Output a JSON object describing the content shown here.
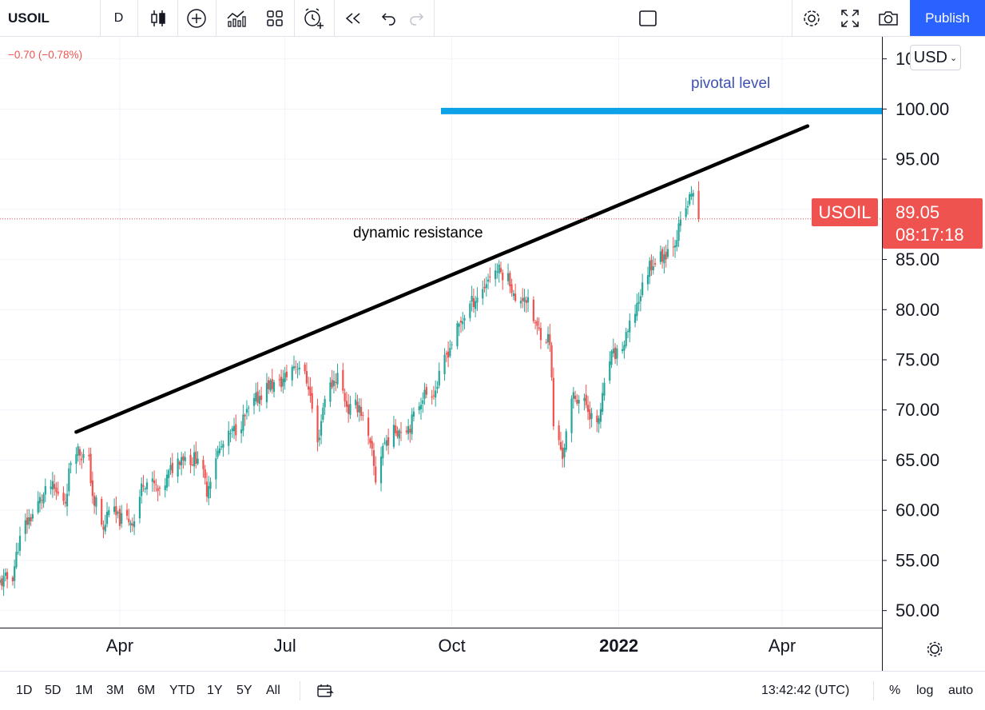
{
  "toolbar": {
    "symbol": "USOIL",
    "interval": "D",
    "publish_label": "Publish",
    "icons": [
      "candles-icon",
      "add-indicator-icon",
      "indicators-icon",
      "layout-icon",
      "alert-icon",
      "replay-icon",
      "undo-icon",
      "redo-icon",
      "rectangle-icon",
      "settings-icon",
      "fullscreen-icon",
      "camera-icon"
    ]
  },
  "legend": {
    "change": "−0.70 (−0.78%)"
  },
  "currency": "USD",
  "price_label": {
    "symbol": "USOIL",
    "price": "89.05",
    "countdown": "08:17:18"
  },
  "annotations": {
    "pivotal": "pivotal level",
    "dynamic": "dynamic resistance"
  },
  "bottom": {
    "ranges": [
      "1D",
      "5D",
      "1M",
      "3M",
      "6M",
      "YTD",
      "1Y",
      "5Y",
      "All"
    ],
    "clock": "13:42:42 (UTC)",
    "pct": "%",
    "log": "log",
    "auto": "auto"
  },
  "chart_data": {
    "type": "candlestick",
    "symbol": "USOIL",
    "y_ticks": [
      "50.00",
      "55.00",
      "60.00",
      "65.00",
      "70.00",
      "75.00",
      "80.00",
      "85.00",
      "90.00",
      "95.00",
      "100.00",
      "105.00"
    ],
    "ylim": [
      48.3,
      107.2
    ],
    "x_ticks": [
      {
        "label": "Apr",
        "date": "2021-04-01"
      },
      {
        "label": "Jul",
        "date": "2021-07-01"
      },
      {
        "label": "Oct",
        "date": "2021-10-01"
      },
      {
        "label": "2022",
        "date": "2022-01-01",
        "bold": true
      },
      {
        "label": "Apr",
        "date": "2022-04-01"
      }
    ],
    "xlim": [
      "2021-01-25",
      "2022-05-26"
    ],
    "last_price": 89.05,
    "colors": {
      "up": "#26a69a",
      "down": "#ef5350",
      "pivot": "#0da2e8",
      "trend": "#000000",
      "grid": "#f0f3fa"
    },
    "close_series": [
      [
        "2021-01-25",
        52.8
      ],
      [
        "2021-02-01",
        53.5
      ],
      [
        "2021-02-04",
        56.5
      ],
      [
        "2021-02-08",
        58.6
      ],
      [
        "2021-02-12",
        59.6
      ],
      [
        "2021-02-16",
        61.0
      ],
      [
        "2021-02-22",
        62.4
      ],
      [
        "2021-02-26",
        61.5
      ],
      [
        "2021-03-02",
        61.0
      ],
      [
        "2021-03-05",
        65.0
      ],
      [
        "2021-03-08",
        66.3
      ],
      [
        "2021-03-11",
        65.5
      ],
      [
        "2021-03-15",
        64.8
      ],
      [
        "2021-03-18",
        60.0
      ],
      [
        "2021-03-19",
        61.0
      ],
      [
        "2021-03-23",
        57.8
      ],
      [
        "2021-03-26",
        60.5
      ],
      [
        "2021-03-31",
        59.1
      ],
      [
        "2021-04-05",
        59.1
      ],
      [
        "2021-04-09",
        59.0
      ],
      [
        "2021-04-14",
        63.0
      ],
      [
        "2021-04-20",
        62.5
      ],
      [
        "2021-04-23",
        61.5
      ],
      [
        "2021-04-29",
        64.0
      ],
      [
        "2021-05-05",
        65.5
      ],
      [
        "2021-05-11",
        65.0
      ],
      [
        "2021-05-14",
        65.5
      ],
      [
        "2021-05-19",
        62.0
      ],
      [
        "2021-05-24",
        65.5
      ],
      [
        "2021-06-01",
        67.5
      ],
      [
        "2021-06-08",
        69.0
      ],
      [
        "2021-06-15",
        71.0
      ],
      [
        "2021-06-22",
        72.5
      ],
      [
        "2021-06-28",
        72.5
      ],
      [
        "2021-07-06",
        74.5
      ],
      [
        "2021-07-09",
        74.5
      ],
      [
        "2021-07-14",
        72.5
      ],
      [
        "2021-07-19",
        66.5
      ],
      [
        "2021-07-23",
        71.5
      ],
      [
        "2021-07-30",
        73.5
      ],
      [
        "2021-08-05",
        70.0
      ],
      [
        "2021-08-11",
        70.5
      ],
      [
        "2021-08-18",
        65.5
      ],
      [
        "2021-08-20",
        63.0
      ],
      [
        "2021-08-24",
        66.5
      ],
      [
        "2021-08-31",
        68.0
      ],
      [
        "2021-09-08",
        68.5
      ],
      [
        "2021-09-15",
        71.5
      ],
      [
        "2021-09-22",
        72.0
      ],
      [
        "2021-09-28",
        75.5
      ],
      [
        "2021-10-04",
        78.0
      ],
      [
        "2021-10-11",
        80.5
      ],
      [
        "2021-10-18",
        82.0
      ],
      [
        "2021-10-22",
        83.5
      ],
      [
        "2021-10-26",
        84.0
      ],
      [
        "2021-11-02",
        83.0
      ],
      [
        "2021-11-05",
        80.5
      ],
      [
        "2021-11-10",
        81.5
      ],
      [
        "2021-11-17",
        78.0
      ],
      [
        "2021-11-24",
        77.0
      ],
      [
        "2021-11-26",
        68.5
      ],
      [
        "2021-12-01",
        65.5
      ],
      [
        "2021-12-07",
        71.5
      ],
      [
        "2021-12-14",
        70.5
      ],
      [
        "2021-12-20",
        68.2
      ],
      [
        "2021-12-27",
        75.0
      ],
      [
        "2022-01-04",
        76.5
      ],
      [
        "2022-01-11",
        80.5
      ],
      [
        "2022-01-18",
        84.5
      ],
      [
        "2022-01-26",
        85.5
      ],
      [
        "2022-02-01",
        87.0
      ],
      [
        "2022-02-07",
        90.0
      ],
      [
        "2022-02-11",
        92.0
      ],
      [
        "2022-02-14",
        89.05
      ]
    ],
    "drawings": [
      {
        "type": "horizontal-segment",
        "label": "pivotal level",
        "from": "2021-09-25",
        "to": "2022-05-26",
        "y": 99.8
      },
      {
        "type": "trendline",
        "label": "dynamic resistance",
        "from": [
          "2021-03-08",
          67.8
        ],
        "to": [
          "2022-04-15",
          98.3
        ]
      }
    ]
  }
}
